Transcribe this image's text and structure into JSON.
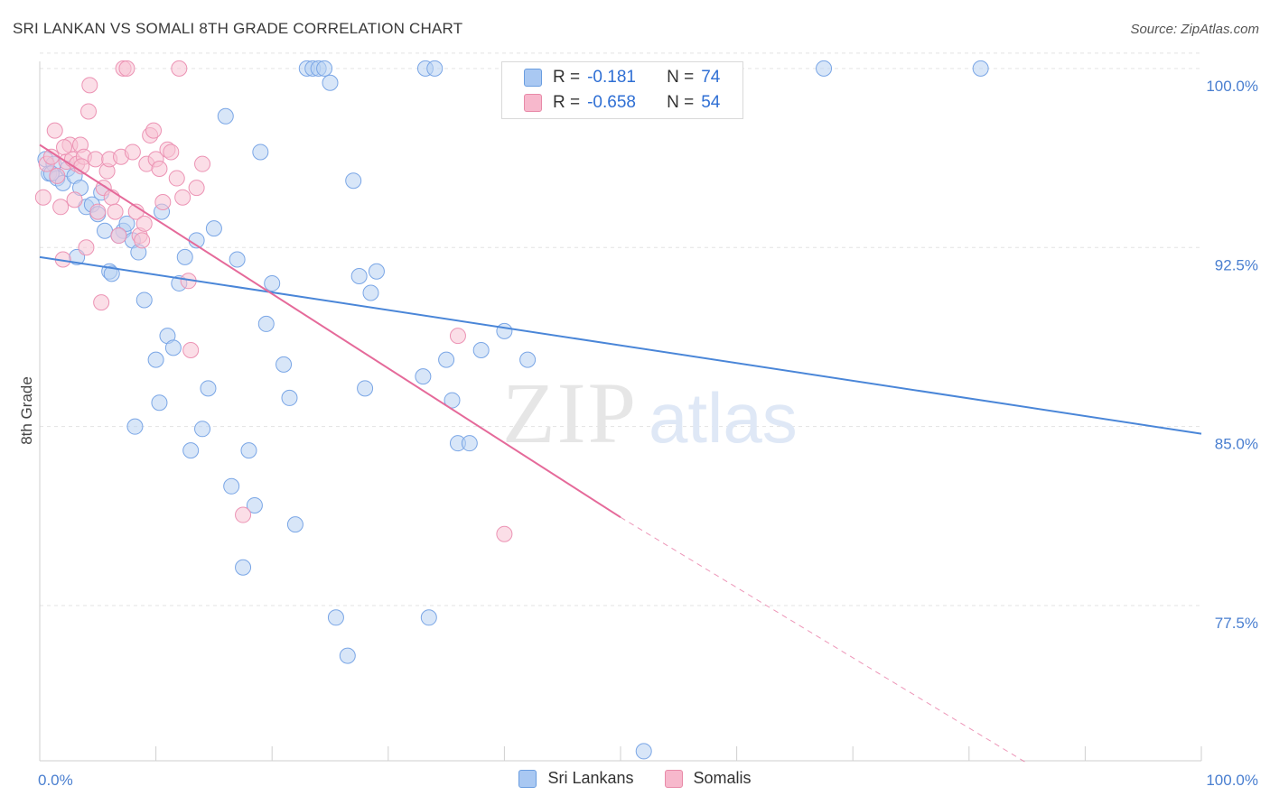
{
  "header": {
    "title": "SRI LANKAN VS SOMALI 8TH GRADE CORRELATION CHART",
    "source": "Source: ZipAtlas.com"
  },
  "watermark": {
    "zip": "ZIP",
    "atlas": "atlas"
  },
  "legend": {
    "rows": [
      {
        "r_label": "R =",
        "r_value": "-0.181",
        "n_label": "N =",
        "n_value": "74",
        "color": "#a9c8f2",
        "border": "#6a9de0"
      },
      {
        "r_label": "R =",
        "r_value": "-0.658",
        "n_label": "N =",
        "n_value": "54",
        "color": "#f7b8cc",
        "border": "#e88aa8"
      }
    ]
  },
  "bottom_legend": [
    {
      "label": "Sri Lankans",
      "color": "#a9c8f2",
      "border": "#6a9de0"
    },
    {
      "label": "Somalis",
      "color": "#f7b8cc",
      "border": "#e88aa8"
    }
  ],
  "chart_data": {
    "type": "scatter",
    "ylabel": "8th Grade",
    "xlim": [
      0,
      100
    ],
    "ylim": [
      71,
      100.6
    ],
    "y_ticks": [
      {
        "value": 100,
        "label": "100.0%"
      },
      {
        "value": 92.5,
        "label": "92.5%"
      },
      {
        "value": 85,
        "label": "85.0%"
      },
      {
        "value": 77.5,
        "label": "77.5%"
      }
    ],
    "x_ticks": [
      {
        "value": 0,
        "label": "0.0%"
      },
      {
        "value": 100,
        "label": "100.0%"
      }
    ],
    "grid": true,
    "colors": {
      "blue": "#4a86d8",
      "pink": "#e56a9a",
      "blue_fill": "#b8d1f3",
      "pink_fill": "#f8c3d4"
    },
    "series": [
      {
        "name": "Sri Lankans",
        "color": "#4a86d8",
        "trend": {
          "x": [
            0,
            100
          ],
          "y": [
            92.1,
            84.7
          ]
        },
        "points": [
          [
            0.5,
            96.2
          ],
          [
            0.8,
            95.6
          ],
          [
            1.2,
            96.0
          ],
          [
            1.5,
            95.4
          ],
          [
            2.0,
            95.2
          ],
          [
            2.4,
            95.8
          ],
          [
            3.0,
            95.5
          ],
          [
            3.5,
            95.0
          ],
          [
            4.0,
            94.2
          ],
          [
            4.5,
            94.3
          ],
          [
            5.0,
            93.9
          ],
          [
            5.3,
            94.8
          ],
          [
            5.6,
            93.2
          ],
          [
            6.0,
            91.5
          ],
          [
            6.2,
            91.4
          ],
          [
            7.2,
            93.2
          ],
          [
            7.5,
            93.5
          ],
          [
            8.0,
            92.8
          ],
          [
            8.5,
            92.3
          ],
          [
            9.0,
            90.3
          ],
          [
            10.0,
            87.8
          ],
          [
            10.5,
            94.0
          ],
          [
            10.3,
            86.0
          ],
          [
            8.2,
            85.0
          ],
          [
            11.0,
            88.8
          ],
          [
            11.5,
            88.3
          ],
          [
            12.0,
            91.0
          ],
          [
            12.5,
            92.1
          ],
          [
            13.0,
            84.0
          ],
          [
            13.5,
            92.8
          ],
          [
            14.0,
            84.9
          ],
          [
            14.5,
            86.6
          ],
          [
            15.0,
            93.3
          ],
          [
            16.0,
            98.0
          ],
          [
            17.0,
            92.0
          ],
          [
            16.5,
            82.5
          ],
          [
            18.0,
            84.0
          ],
          [
            18.5,
            81.7
          ],
          [
            17.5,
            79.1
          ],
          [
            19.0,
            96.5
          ],
          [
            20.0,
            91.0
          ],
          [
            19.5,
            89.3
          ],
          [
            21.0,
            87.6
          ],
          [
            21.5,
            86.2
          ],
          [
            22.0,
            80.9
          ],
          [
            23.0,
            100.0
          ],
          [
            23.5,
            100.0
          ],
          [
            24.0,
            100.0
          ],
          [
            24.5,
            100.0
          ],
          [
            25.0,
            99.4
          ],
          [
            25.5,
            77.0
          ],
          [
            26.5,
            75.4
          ],
          [
            27.0,
            95.3
          ],
          [
            27.5,
            91.3
          ],
          [
            28.0,
            86.6
          ],
          [
            28.5,
            90.6
          ],
          [
            29.0,
            91.5
          ],
          [
            33.0,
            87.1
          ],
          [
            33.5,
            77.0
          ],
          [
            33.2,
            100.0
          ],
          [
            34.0,
            100.0
          ],
          [
            35.0,
            87.8
          ],
          [
            35.5,
            86.1
          ],
          [
            36.0,
            84.3
          ],
          [
            37.0,
            84.3
          ],
          [
            38.0,
            88.2
          ],
          [
            40.0,
            89.0
          ],
          [
            42.0,
            87.8
          ],
          [
            52.0,
            71.4
          ],
          [
            67.5,
            100.0
          ],
          [
            81.0,
            100.0
          ],
          [
            3.2,
            92.1
          ],
          [
            1.0,
            95.6
          ],
          [
            6.8,
            93.0
          ]
        ]
      },
      {
        "name": "Somalis",
        "color": "#e56a9a",
        "trend": {
          "x": [
            0,
            50
          ],
          "y": [
            96.8,
            81.2
          ]
        },
        "trend_ext": {
          "x": [
            50,
            85
          ],
          "y": [
            81.2,
            70.9
          ]
        },
        "points": [
          [
            0.3,
            94.6
          ],
          [
            0.6,
            96.0
          ],
          [
            1.0,
            96.3
          ],
          [
            1.3,
            97.4
          ],
          [
            1.5,
            95.5
          ],
          [
            1.8,
            94.2
          ],
          [
            2.0,
            92.0
          ],
          [
            2.3,
            96.1
          ],
          [
            2.6,
            96.8
          ],
          [
            2.8,
            96.2
          ],
          [
            3.0,
            94.5
          ],
          [
            3.2,
            96.0
          ],
          [
            3.5,
            96.8
          ],
          [
            3.8,
            96.3
          ],
          [
            4.0,
            92.5
          ],
          [
            4.2,
            98.2
          ],
          [
            4.3,
            99.3
          ],
          [
            4.8,
            96.2
          ],
          [
            5.0,
            94.0
          ],
          [
            5.3,
            90.2
          ],
          [
            5.5,
            95.0
          ],
          [
            5.8,
            95.7
          ],
          [
            6.0,
            96.2
          ],
          [
            6.2,
            94.6
          ],
          [
            6.5,
            94.0
          ],
          [
            6.8,
            93.0
          ],
          [
            7.0,
            96.3
          ],
          [
            7.2,
            100.0
          ],
          [
            7.5,
            100.0
          ],
          [
            8.0,
            96.5
          ],
          [
            8.3,
            94.0
          ],
          [
            8.6,
            93.0
          ],
          [
            8.8,
            92.8
          ],
          [
            9.0,
            93.5
          ],
          [
            9.2,
            96.0
          ],
          [
            9.5,
            97.2
          ],
          [
            9.8,
            97.4
          ],
          [
            10.0,
            96.2
          ],
          [
            10.3,
            95.8
          ],
          [
            10.6,
            94.4
          ],
          [
            11.0,
            96.6
          ],
          [
            11.3,
            96.5
          ],
          [
            11.8,
            95.4
          ],
          [
            12.0,
            100.0
          ],
          [
            12.3,
            94.6
          ],
          [
            12.8,
            91.1
          ],
          [
            13.0,
            88.2
          ],
          [
            13.5,
            95.0
          ],
          [
            14.0,
            96.0
          ],
          [
            17.5,
            81.3
          ],
          [
            36.0,
            88.8
          ],
          [
            40.0,
            80.5
          ],
          [
            3.6,
            95.9
          ],
          [
            2.1,
            96.7
          ]
        ]
      }
    ]
  }
}
